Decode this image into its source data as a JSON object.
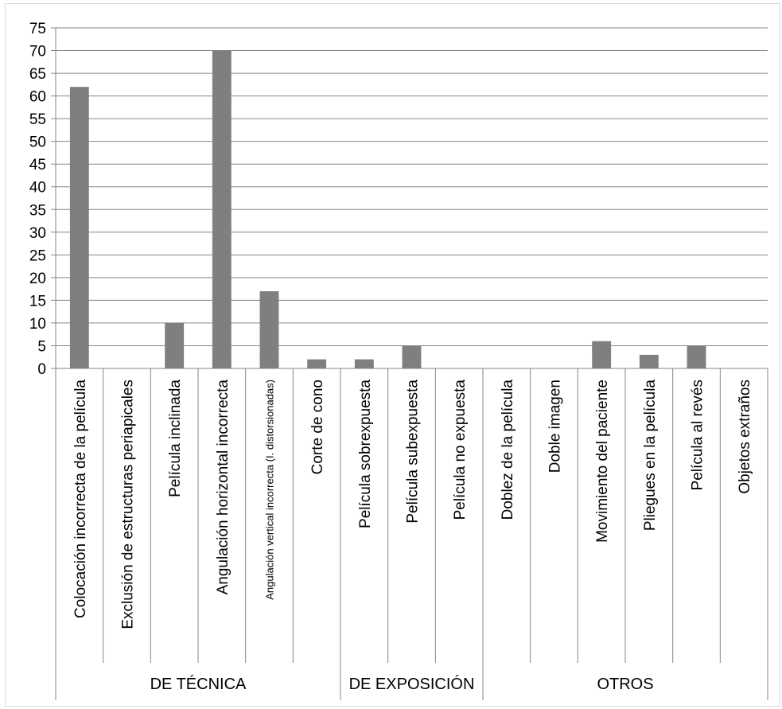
{
  "chart_data": {
    "type": "bar",
    "categories": [
      "Colocación incorrecta de la película",
      "Exclusión de estructuras periapicales",
      "Película inclinada",
      "Angulación horizontal incorrecta",
      "Angulación vertical incorrecta (I. distorsionadas)",
      "Corte de cono",
      "Película sobrexpuesta",
      "Película subexpuesta",
      "Película no expuesta",
      "Doblez de la película",
      "Doble imagen",
      "Movimiento del paciente",
      "Pliegues en la película",
      "Película al revés",
      "Objetos extraños"
    ],
    "values": [
      62,
      0,
      10,
      70,
      17,
      2,
      2,
      5,
      0,
      0,
      0,
      6,
      3,
      5,
      0
    ],
    "groups": [
      {
        "label": "DE  TÉCNICA",
        "span": 6
      },
      {
        "label": "DE EXPOSICIÓN",
        "span": 3
      },
      {
        "label": "OTROS",
        "span": 6
      }
    ],
    "yticks": [
      "0",
      "5",
      "10",
      "15",
      "20",
      "25",
      "30",
      "35",
      "40",
      "45",
      "50",
      "55",
      "60",
      "65",
      "70",
      "75"
    ],
    "ylim": [
      0,
      75
    ],
    "grid": true,
    "colors": {
      "bar": "#7f7f7f",
      "grid": "#868686"
    }
  }
}
